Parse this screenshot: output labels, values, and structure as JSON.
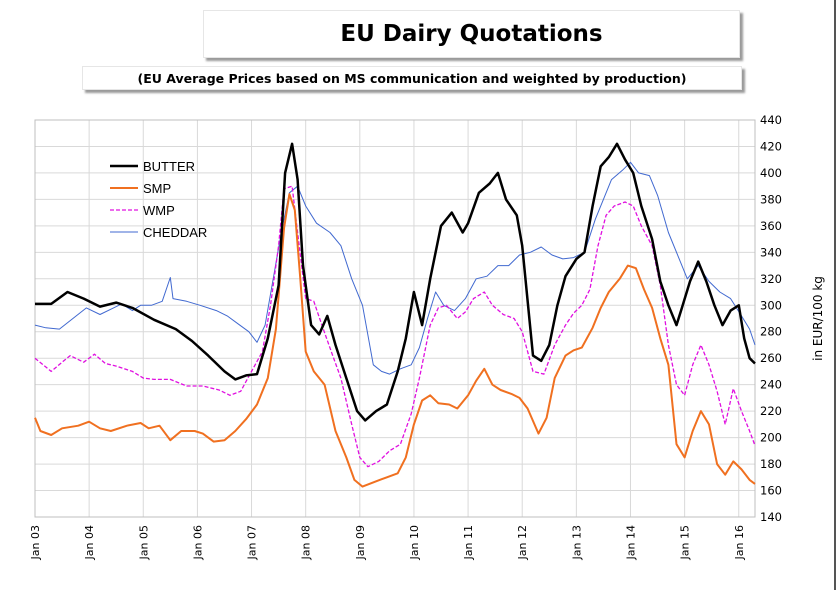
{
  "header": {
    "title": "EU Dairy Quotations",
    "subtitle": "(EU Average Prices based on MS communication and weighted by production)"
  },
  "chart_data": {
    "type": "line",
    "title": "EU Dairy Quotations",
    "subtitle": "(EU Average Prices based on MS communication and weighted by production)",
    "xlabel": "",
    "ylabel": "in EUR/100 kg",
    "x_ticks": [
      "Jan 03",
      "Jan 04",
      "Jan 05",
      "Jan 06",
      "Jan 07",
      "Jan 08",
      "Jan 09",
      "Jan 10",
      "Jan 11",
      "Jan 12",
      "Jan 13",
      "Jan 14",
      "Jan 15",
      "Jan 16"
    ],
    "y_ticks": [
      140,
      160,
      180,
      200,
      220,
      240,
      260,
      280,
      300,
      320,
      340,
      360,
      380,
      400,
      420,
      440
    ],
    "xlim": [
      2003.0,
      2016.3
    ],
    "ylim": [
      140,
      440
    ],
    "grid": true,
    "legend_position": "top-left",
    "series": [
      {
        "name": "BUTTER",
        "color": "#000000",
        "style": "solid",
        "points": [
          [
            2003.0,
            301
          ],
          [
            2003.3,
            301
          ],
          [
            2003.6,
            310
          ],
          [
            2003.9,
            305
          ],
          [
            2004.2,
            299
          ],
          [
            2004.5,
            302
          ],
          [
            2004.8,
            298
          ],
          [
            2005.2,
            289
          ],
          [
            2005.6,
            282
          ],
          [
            2005.9,
            273
          ],
          [
            2006.2,
            262
          ],
          [
            2006.5,
            250
          ],
          [
            2006.7,
            244
          ],
          [
            2006.9,
            247
          ],
          [
            2007.1,
            248
          ],
          [
            2007.3,
            275
          ],
          [
            2007.5,
            315
          ],
          [
            2007.62,
            400
          ],
          [
            2007.75,
            422
          ],
          [
            2007.85,
            395
          ],
          [
            2007.95,
            330
          ],
          [
            2008.1,
            285
          ],
          [
            2008.25,
            278
          ],
          [
            2008.4,
            292
          ],
          [
            2008.55,
            270
          ],
          [
            2008.75,
            245
          ],
          [
            2008.95,
            220
          ],
          [
            2009.1,
            213
          ],
          [
            2009.3,
            220
          ],
          [
            2009.5,
            225
          ],
          [
            2009.7,
            250
          ],
          [
            2009.85,
            275
          ],
          [
            2010.0,
            310
          ],
          [
            2010.15,
            285
          ],
          [
            2010.3,
            320
          ],
          [
            2010.5,
            360
          ],
          [
            2010.7,
            370
          ],
          [
            2010.9,
            355
          ],
          [
            2011.0,
            362
          ],
          [
            2011.2,
            385
          ],
          [
            2011.4,
            392
          ],
          [
            2011.55,
            400
          ],
          [
            2011.7,
            380
          ],
          [
            2011.9,
            368
          ],
          [
            2012.0,
            345
          ],
          [
            2012.2,
            262
          ],
          [
            2012.35,
            258
          ],
          [
            2012.5,
            270
          ],
          [
            2012.65,
            300
          ],
          [
            2012.8,
            322
          ],
          [
            2013.0,
            335
          ],
          [
            2013.15,
            340
          ],
          [
            2013.3,
            375
          ],
          [
            2013.45,
            405
          ],
          [
            2013.6,
            412
          ],
          [
            2013.75,
            422
          ],
          [
            2013.9,
            410
          ],
          [
            2014.05,
            400
          ],
          [
            2014.2,
            375
          ],
          [
            2014.4,
            350
          ],
          [
            2014.55,
            318
          ],
          [
            2014.7,
            300
          ],
          [
            2014.85,
            285
          ],
          [
            2014.95,
            298
          ],
          [
            2015.1,
            318
          ],
          [
            2015.25,
            333
          ],
          [
            2015.4,
            318
          ],
          [
            2015.55,
            300
          ],
          [
            2015.7,
            285
          ],
          [
            2015.85,
            296
          ],
          [
            2016.0,
            300
          ],
          [
            2016.1,
            275
          ],
          [
            2016.2,
            260
          ],
          [
            2016.3,
            256
          ]
        ]
      },
      {
        "name": "SMP",
        "color": "#f07020",
        "style": "solid",
        "points": [
          [
            2003.0,
            215
          ],
          [
            2003.1,
            205
          ],
          [
            2003.3,
            202
          ],
          [
            2003.5,
            207
          ],
          [
            2003.8,
            209
          ],
          [
            2004.0,
            212
          ],
          [
            2004.2,
            207
          ],
          [
            2004.4,
            205
          ],
          [
            2004.7,
            209
          ],
          [
            2004.95,
            211
          ],
          [
            2005.1,
            207
          ],
          [
            2005.3,
            209
          ],
          [
            2005.5,
            198
          ],
          [
            2005.7,
            205
          ],
          [
            2005.95,
            205
          ],
          [
            2006.1,
            203
          ],
          [
            2006.3,
            197
          ],
          [
            2006.5,
            198
          ],
          [
            2006.7,
            205
          ],
          [
            2006.9,
            214
          ],
          [
            2007.1,
            225
          ],
          [
            2007.3,
            245
          ],
          [
            2007.45,
            282
          ],
          [
            2007.6,
            358
          ],
          [
            2007.7,
            384
          ],
          [
            2007.8,
            372
          ],
          [
            2007.9,
            320
          ],
          [
            2008.0,
            265
          ],
          [
            2008.15,
            250
          ],
          [
            2008.35,
            240
          ],
          [
            2008.55,
            205
          ],
          [
            2008.75,
            185
          ],
          [
            2008.9,
            168
          ],
          [
            2009.05,
            163
          ],
          [
            2009.3,
            167
          ],
          [
            2009.5,
            170
          ],
          [
            2009.7,
            173
          ],
          [
            2009.85,
            185
          ],
          [
            2010.0,
            210
          ],
          [
            2010.15,
            228
          ],
          [
            2010.3,
            232
          ],
          [
            2010.45,
            226
          ],
          [
            2010.65,
            225
          ],
          [
            2010.8,
            222
          ],
          [
            2011.0,
            232
          ],
          [
            2011.15,
            243
          ],
          [
            2011.3,
            252
          ],
          [
            2011.45,
            240
          ],
          [
            2011.6,
            236
          ],
          [
            2011.8,
            233
          ],
          [
            2011.95,
            230
          ],
          [
            2012.1,
            222
          ],
          [
            2012.3,
            203
          ],
          [
            2012.45,
            215
          ],
          [
            2012.6,
            245
          ],
          [
            2012.8,
            262
          ],
          [
            2012.95,
            266
          ],
          [
            2013.1,
            268
          ],
          [
            2013.3,
            283
          ],
          [
            2013.45,
            298
          ],
          [
            2013.6,
            310
          ],
          [
            2013.8,
            320
          ],
          [
            2013.95,
            330
          ],
          [
            2014.1,
            328
          ],
          [
            2014.25,
            312
          ],
          [
            2014.4,
            298
          ],
          [
            2014.55,
            275
          ],
          [
            2014.7,
            255
          ],
          [
            2014.85,
            195
          ],
          [
            2015.0,
            185
          ],
          [
            2015.15,
            205
          ],
          [
            2015.3,
            220
          ],
          [
            2015.45,
            210
          ],
          [
            2015.6,
            180
          ],
          [
            2015.75,
            172
          ],
          [
            2015.9,
            182
          ],
          [
            2016.05,
            176
          ],
          [
            2016.2,
            168
          ],
          [
            2016.3,
            165
          ]
        ]
      },
      {
        "name": "WMP",
        "color": "#e010e0",
        "style": "dashed",
        "points": [
          [
            2003.0,
            260
          ],
          [
            2003.15,
            255
          ],
          [
            2003.3,
            250
          ],
          [
            2003.5,
            257
          ],
          [
            2003.65,
            262
          ],
          [
            2003.9,
            257
          ],
          [
            2004.1,
            263
          ],
          [
            2004.3,
            256
          ],
          [
            2004.5,
            254
          ],
          [
            2004.8,
            250
          ],
          [
            2005.0,
            245
          ],
          [
            2005.2,
            244
          ],
          [
            2005.5,
            244
          ],
          [
            2005.8,
            239
          ],
          [
            2006.1,
            239
          ],
          [
            2006.4,
            236
          ],
          [
            2006.6,
            232
          ],
          [
            2006.8,
            235
          ],
          [
            2007.0,
            250
          ],
          [
            2007.2,
            265
          ],
          [
            2007.35,
            300
          ],
          [
            2007.5,
            345
          ],
          [
            2007.6,
            388
          ],
          [
            2007.75,
            390
          ],
          [
            2007.85,
            355
          ],
          [
            2008.0,
            305
          ],
          [
            2008.15,
            303
          ],
          [
            2008.3,
            285
          ],
          [
            2008.5,
            262
          ],
          [
            2008.65,
            245
          ],
          [
            2008.85,
            210
          ],
          [
            2009.0,
            185
          ],
          [
            2009.15,
            178
          ],
          [
            2009.35,
            182
          ],
          [
            2009.55,
            190
          ],
          [
            2009.75,
            195
          ],
          [
            2009.95,
            218
          ],
          [
            2010.1,
            245
          ],
          [
            2010.3,
            285
          ],
          [
            2010.45,
            298
          ],
          [
            2010.6,
            300
          ],
          [
            2010.8,
            290
          ],
          [
            2010.95,
            295
          ],
          [
            2011.1,
            305
          ],
          [
            2011.3,
            310
          ],
          [
            2011.45,
            300
          ],
          [
            2011.65,
            293
          ],
          [
            2011.85,
            290
          ],
          [
            2012.0,
            280
          ],
          [
            2012.2,
            250
          ],
          [
            2012.4,
            248
          ],
          [
            2012.6,
            270
          ],
          [
            2012.8,
            285
          ],
          [
            2012.95,
            294
          ],
          [
            2013.1,
            300
          ],
          [
            2013.25,
            312
          ],
          [
            2013.4,
            345
          ],
          [
            2013.55,
            368
          ],
          [
            2013.7,
            375
          ],
          [
            2013.9,
            378
          ],
          [
            2014.05,
            375
          ],
          [
            2014.2,
            360
          ],
          [
            2014.4,
            345
          ],
          [
            2014.55,
            315
          ],
          [
            2014.7,
            270
          ],
          [
            2014.85,
            240
          ],
          [
            2015.0,
            232
          ],
          [
            2015.15,
            255
          ],
          [
            2015.3,
            270
          ],
          [
            2015.45,
            255
          ],
          [
            2015.6,
            235
          ],
          [
            2015.75,
            210
          ],
          [
            2015.9,
            237
          ],
          [
            2016.05,
            220
          ],
          [
            2016.2,
            205
          ],
          [
            2016.3,
            194
          ]
        ]
      },
      {
        "name": "CHEDDAR",
        "color": "#4169d0",
        "style": "solid",
        "points": [
          [
            2003.0,
            285
          ],
          [
            2003.2,
            283
          ],
          [
            2003.45,
            282
          ],
          [
            2003.7,
            290
          ],
          [
            2003.95,
            298
          ],
          [
            2004.2,
            293
          ],
          [
            2004.45,
            298
          ],
          [
            2004.6,
            301
          ],
          [
            2004.8,
            296
          ],
          [
            2004.95,
            300
          ],
          [
            2005.15,
            300
          ],
          [
            2005.35,
            303
          ],
          [
            2005.5,
            321
          ],
          [
            2005.55,
            305
          ],
          [
            2005.8,
            303
          ],
          [
            2006.05,
            300
          ],
          [
            2006.35,
            296
          ],
          [
            2006.55,
            292
          ],
          [
            2006.75,
            286
          ],
          [
            2006.95,
            280
          ],
          [
            2007.1,
            272
          ],
          [
            2007.25,
            285
          ],
          [
            2007.4,
            320
          ],
          [
            2007.55,
            355
          ],
          [
            2007.7,
            385
          ],
          [
            2007.85,
            390
          ],
          [
            2008.0,
            375
          ],
          [
            2008.2,
            362
          ],
          [
            2008.45,
            355
          ],
          [
            2008.65,
            345
          ],
          [
            2008.85,
            320
          ],
          [
            2009.05,
            300
          ],
          [
            2009.25,
            255
          ],
          [
            2009.4,
            250
          ],
          [
            2009.55,
            248
          ],
          [
            2009.75,
            252
          ],
          [
            2009.95,
            255
          ],
          [
            2010.1,
            268
          ],
          [
            2010.25,
            290
          ],
          [
            2010.4,
            310
          ],
          [
            2010.55,
            300
          ],
          [
            2010.75,
            296
          ],
          [
            2010.95,
            305
          ],
          [
            2011.15,
            320
          ],
          [
            2011.35,
            322
          ],
          [
            2011.55,
            330
          ],
          [
            2011.75,
            330
          ],
          [
            2011.95,
            338
          ],
          [
            2012.15,
            340
          ],
          [
            2012.35,
            344
          ],
          [
            2012.55,
            338
          ],
          [
            2012.75,
            335
          ],
          [
            2012.95,
            336
          ],
          [
            2013.15,
            340
          ],
          [
            2013.35,
            365
          ],
          [
            2013.5,
            380
          ],
          [
            2013.65,
            395
          ],
          [
            2013.85,
            402
          ],
          [
            2014.0,
            408
          ],
          [
            2014.15,
            400
          ],
          [
            2014.35,
            398
          ],
          [
            2014.5,
            383
          ],
          [
            2014.7,
            355
          ],
          [
            2014.9,
            335
          ],
          [
            2015.05,
            320
          ],
          [
            2015.25,
            330
          ],
          [
            2015.45,
            318
          ],
          [
            2015.65,
            310
          ],
          [
            2015.85,
            305
          ],
          [
            2016.05,
            292
          ],
          [
            2016.2,
            282
          ],
          [
            2016.3,
            270
          ]
        ]
      }
    ]
  }
}
